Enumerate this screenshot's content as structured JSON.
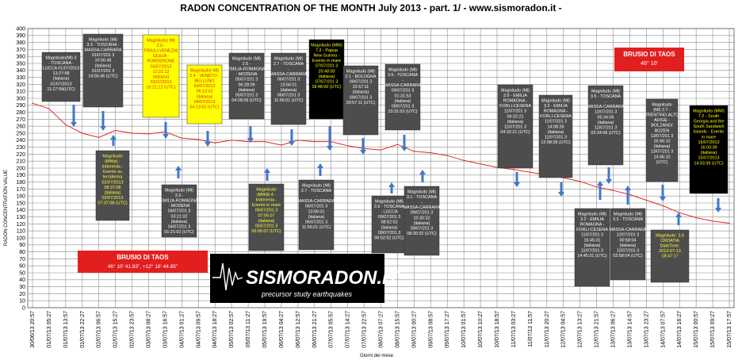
{
  "chart_data": {
    "type": "line",
    "title": "RADON CONCENTRATION OF THE MONTH  July 2013 - part.  1/   - www.sismoradon.it -",
    "xlabel": "Giorni del mese",
    "ylabel": "RADON CONCENTRATION VALUE",
    "ylim": [
      0,
      400
    ],
    "yticks": [
      0,
      10,
      20,
      30,
      40,
      50,
      60,
      70,
      80,
      90,
      100,
      110,
      120,
      130,
      140,
      150,
      160,
      170,
      180,
      190,
      200,
      210,
      220,
      230,
      240,
      250,
      260,
      270,
      280,
      290,
      300,
      310,
      320,
      330,
      340,
      350,
      360,
      370,
      380,
      390,
      400
    ],
    "grid": true,
    "series_color": "#e32521",
    "categories": [
      "30/06/13 20:57",
      "01/07/13 05:27",
      "01/07/13 13:57",
      "01/07/13 22:27",
      "02/07/13 06:57",
      "02/07/13 15:27",
      "02/07/13 23:57",
      "03/07/13 08:27",
      "03/07/13 16:57",
      "04/07/13 01:27",
      "04/07/13 09:57",
      "04/07/13 18:27",
      "05/07/13 02:57",
      "05/07/13 11:27",
      "05/07/13 19:57",
      "06/07/13 04:27",
      "06/07/13 12:57",
      "06/07/13 21:27",
      "07/07/13 05:57",
      "07/07/13 14:27",
      "07/07/13 22:57",
      "08/07/13 07:27",
      "08/07/13 15:57",
      "09/07/13 00:27",
      "09/07/13 08:57",
      "09/07/13 17:27",
      "10/07/13 01:57",
      "10/07/13 10:27",
      "10/07/13 18:57",
      "11/07/13 03:27",
      "11/07/13 11:57",
      "11/07/13 20:27",
      "12/07/13 04:57",
      "12/07/13 13:27",
      "12/07/13 21:57",
      "13/07/13 06:27",
      "13/07/13 14:57",
      "13/07/13 23:27",
      "14/07/13 07:57",
      "14/07/13 16:27",
      "15/07/13 00:57",
      "15/07/13 09:27",
      "15/07/13 17:57"
    ],
    "values": [
      293,
      285,
      262,
      250,
      244,
      254,
      250,
      249,
      252,
      243,
      241,
      236,
      240,
      238,
      238,
      233,
      240,
      238,
      238,
      232,
      228,
      226,
      234,
      224,
      222,
      218,
      211,
      206,
      201,
      198,
      194,
      190,
      186,
      181,
      173,
      168,
      162,
      154,
      146,
      136,
      129,
      124,
      121
    ]
  },
  "left_labels": [
    {
      "text": "Magnitudo(Ml) 3 - TOSCANA - LUCCA 01/07/2013 13:27:58 (italiana) 01/07/2013 11:27:58(UTC)",
      "style": "dark"
    },
    {
      "text": "Magnitudo (Ml) 3.3 - TOSCANA - MASSA-CARRARA 01/07/201 3 16:56:46 (italiana) 01/07/201 3 14:56:46 (UTC)",
      "style": "dark"
    },
    {
      "text": "Magnitudo (MWp) - Indonesia - Evento su terraferma 02/07/2013 09:37:08 (italiana) 02/07/2013 07:37:08 (UTC)",
      "style": "dark-yellow"
    },
    {
      "text": "Magnitudo( Ml) 2.6 - FRIULI-VENEZIA GIULIA - PORDENONE 03/07/2013 12:21:12 (italiana) 03/07/2013 10:21:12 (UTC)",
      "style": "yellow"
    },
    {
      "text": "Magnitudo (Ml) 3.3 - EMILIA-ROMAGNA - MODENA 04/07/201 3 03:21:02 (italiana) 04/07/201 3 01:21:02 (UTC)",
      "style": "dark"
    },
    {
      "text": "Magnitudo( Ml) 2.4 - VENETO - BELLUNO 04/07/2013 06:13:52 (italiana) 04/07/2013 04:13:52 (UTC)",
      "style": "yellow"
    },
    {
      "text": "Magnitudo (Ml) 2.6 - EMILIA-ROMAGNA - MODENA 05/07/201 3 06:28:09 (italiana) 05/07/201 3 04:28:09 (UTC)",
      "style": "dark"
    },
    {
      "text": "Magnitudo (MW)6.4 - Indonesia - Evento in mare 06/07/201 3 07:05:07 (italiana) 06/07/201 3 05:05:07 (UTC)",
      "style": "dark-yellow"
    },
    {
      "text": "Magnitudo (Ml) 2.7 - TOSCANA - MASSA-CARRARA 06/07/201 3 13:56:01 (italiana) 06/07/201 3 11:56:01 (UTC)",
      "style": "dark"
    },
    {
      "text": "Magnitudo (Ml) 2.7 - TOSCANA - MASSA-CARRARA 06/07/201 3 13:56:01 (italiana) 06/07/201 3 11:56:01 (UTC)",
      "style": "dark"
    },
    {
      "text": "Magnitudo (MW) 7.2 - Papua New Guinea - Evento in mare 07/07/201 3 20:48:00 (italiana) 07/07/201 3 18:48:00 (UTC)",
      "style": "black-yellow"
    },
    {
      "text": "Magnitudo (Ml) 2.1 - BOLOGNA 09/07/201 3 22:57:11 (italiana) 09/07/201 3 20:57:11 (UTC)",
      "style": "dark"
    },
    {
      "text": "Magnitudo (Ml) 3.5 - TOSCANA - MASSA-CARRARA 09/07/201 3 01:31:53 (italiana) 09/07/201 3 23:31:53 (UTC)",
      "style": "dark"
    },
    {
      "text": "Magnitudo (Ml) 2.5 - TOSCANA - LUCCA 09/07/201 3 08:52:52 (italiana) 09/07/201 3 06:52:52 (UTC)",
      "style": "dark"
    },
    {
      "text": "Magnitudo (Ml) 3.1 - TOSCANA - MASSA-CARRARA 09/07/201 3 10:30:32 (italiana) 09/07/201 3 08:30:32 (UTC)",
      "style": "dark"
    }
  ],
  "right_labels": [
    {
      "text": "Magnitudo (Ml) 3.9 - EMILIA ROMAGNA - FORLI-CESENA 11/07/201 3 06:32:21 (italiana) 11/07/201 3 04:32:21 (UTC)",
      "style": "dark"
    },
    {
      "text": "Magnitudo (Ml) 3.2 - EMILIA ROMAGNA - FORLI-CESENA 11/07/201 3 14:08:28 (italiana) 11/07/201 3 12:08:28 (UTC)",
      "style": "dark"
    },
    {
      "text": "Magnitudo (Ml) 3.5 - TOSCANA - MASSA-CARRARA 12/07/201 3 05:34:06 (italiana) 12/07/201 3 03:34:06 (UTC)",
      "style": "dark"
    },
    {
      "text": "Magnitudo (Ml) 3.2 - EMILIA ROMAGNA - FORLI-CESENA 11/07/201 3 16:45:31 (italiana) 11/07/201 3 14:45:31 (UTC)",
      "style": "dark"
    },
    {
      "text": "Magnitudo (Ml) 3.3 - TOSCANA - MASSA-CARRARA 12/07/201 3 00:58:04 (italiana) 12/07/201 3 02:58:04 (UTC)",
      "style": "dark"
    },
    {
      "text": "Magnitudo (Ml) 2.7 - TRENTINO-ALTO ADIGE - BOLZANO/ BOZEN 13/07/201 3 16:46:10 (italiana) 13/07/201 3 14:46:10 (UTC)",
      "style": "dark"
    },
    {
      "text": "Magnitudo (MW) 7.2 - South Georgia and the South Sandwich Islands - Evento in mare 15/07/2013 16:03:39 (italiana) 15/07/2013 14:03:39 (UTC)",
      "style": "black-yellow"
    },
    {
      "text": "Magnitude: 3.6 CROATIA DateTime: 2013-07-13 18:47:17",
      "style": "dark-yellow"
    }
  ],
  "station_top": {
    "name": "BRUSIO DI TAOS",
    "coords": "46° 10'"
  },
  "station_bottom": {
    "name": "BRUSIO DI TAOS",
    "coords": "46° 10' 41.93\", +12° 16' 44.85\""
  },
  "logo": {
    "main": "SISMORADON.IT",
    "sub": "precursor study earthquakes"
  }
}
